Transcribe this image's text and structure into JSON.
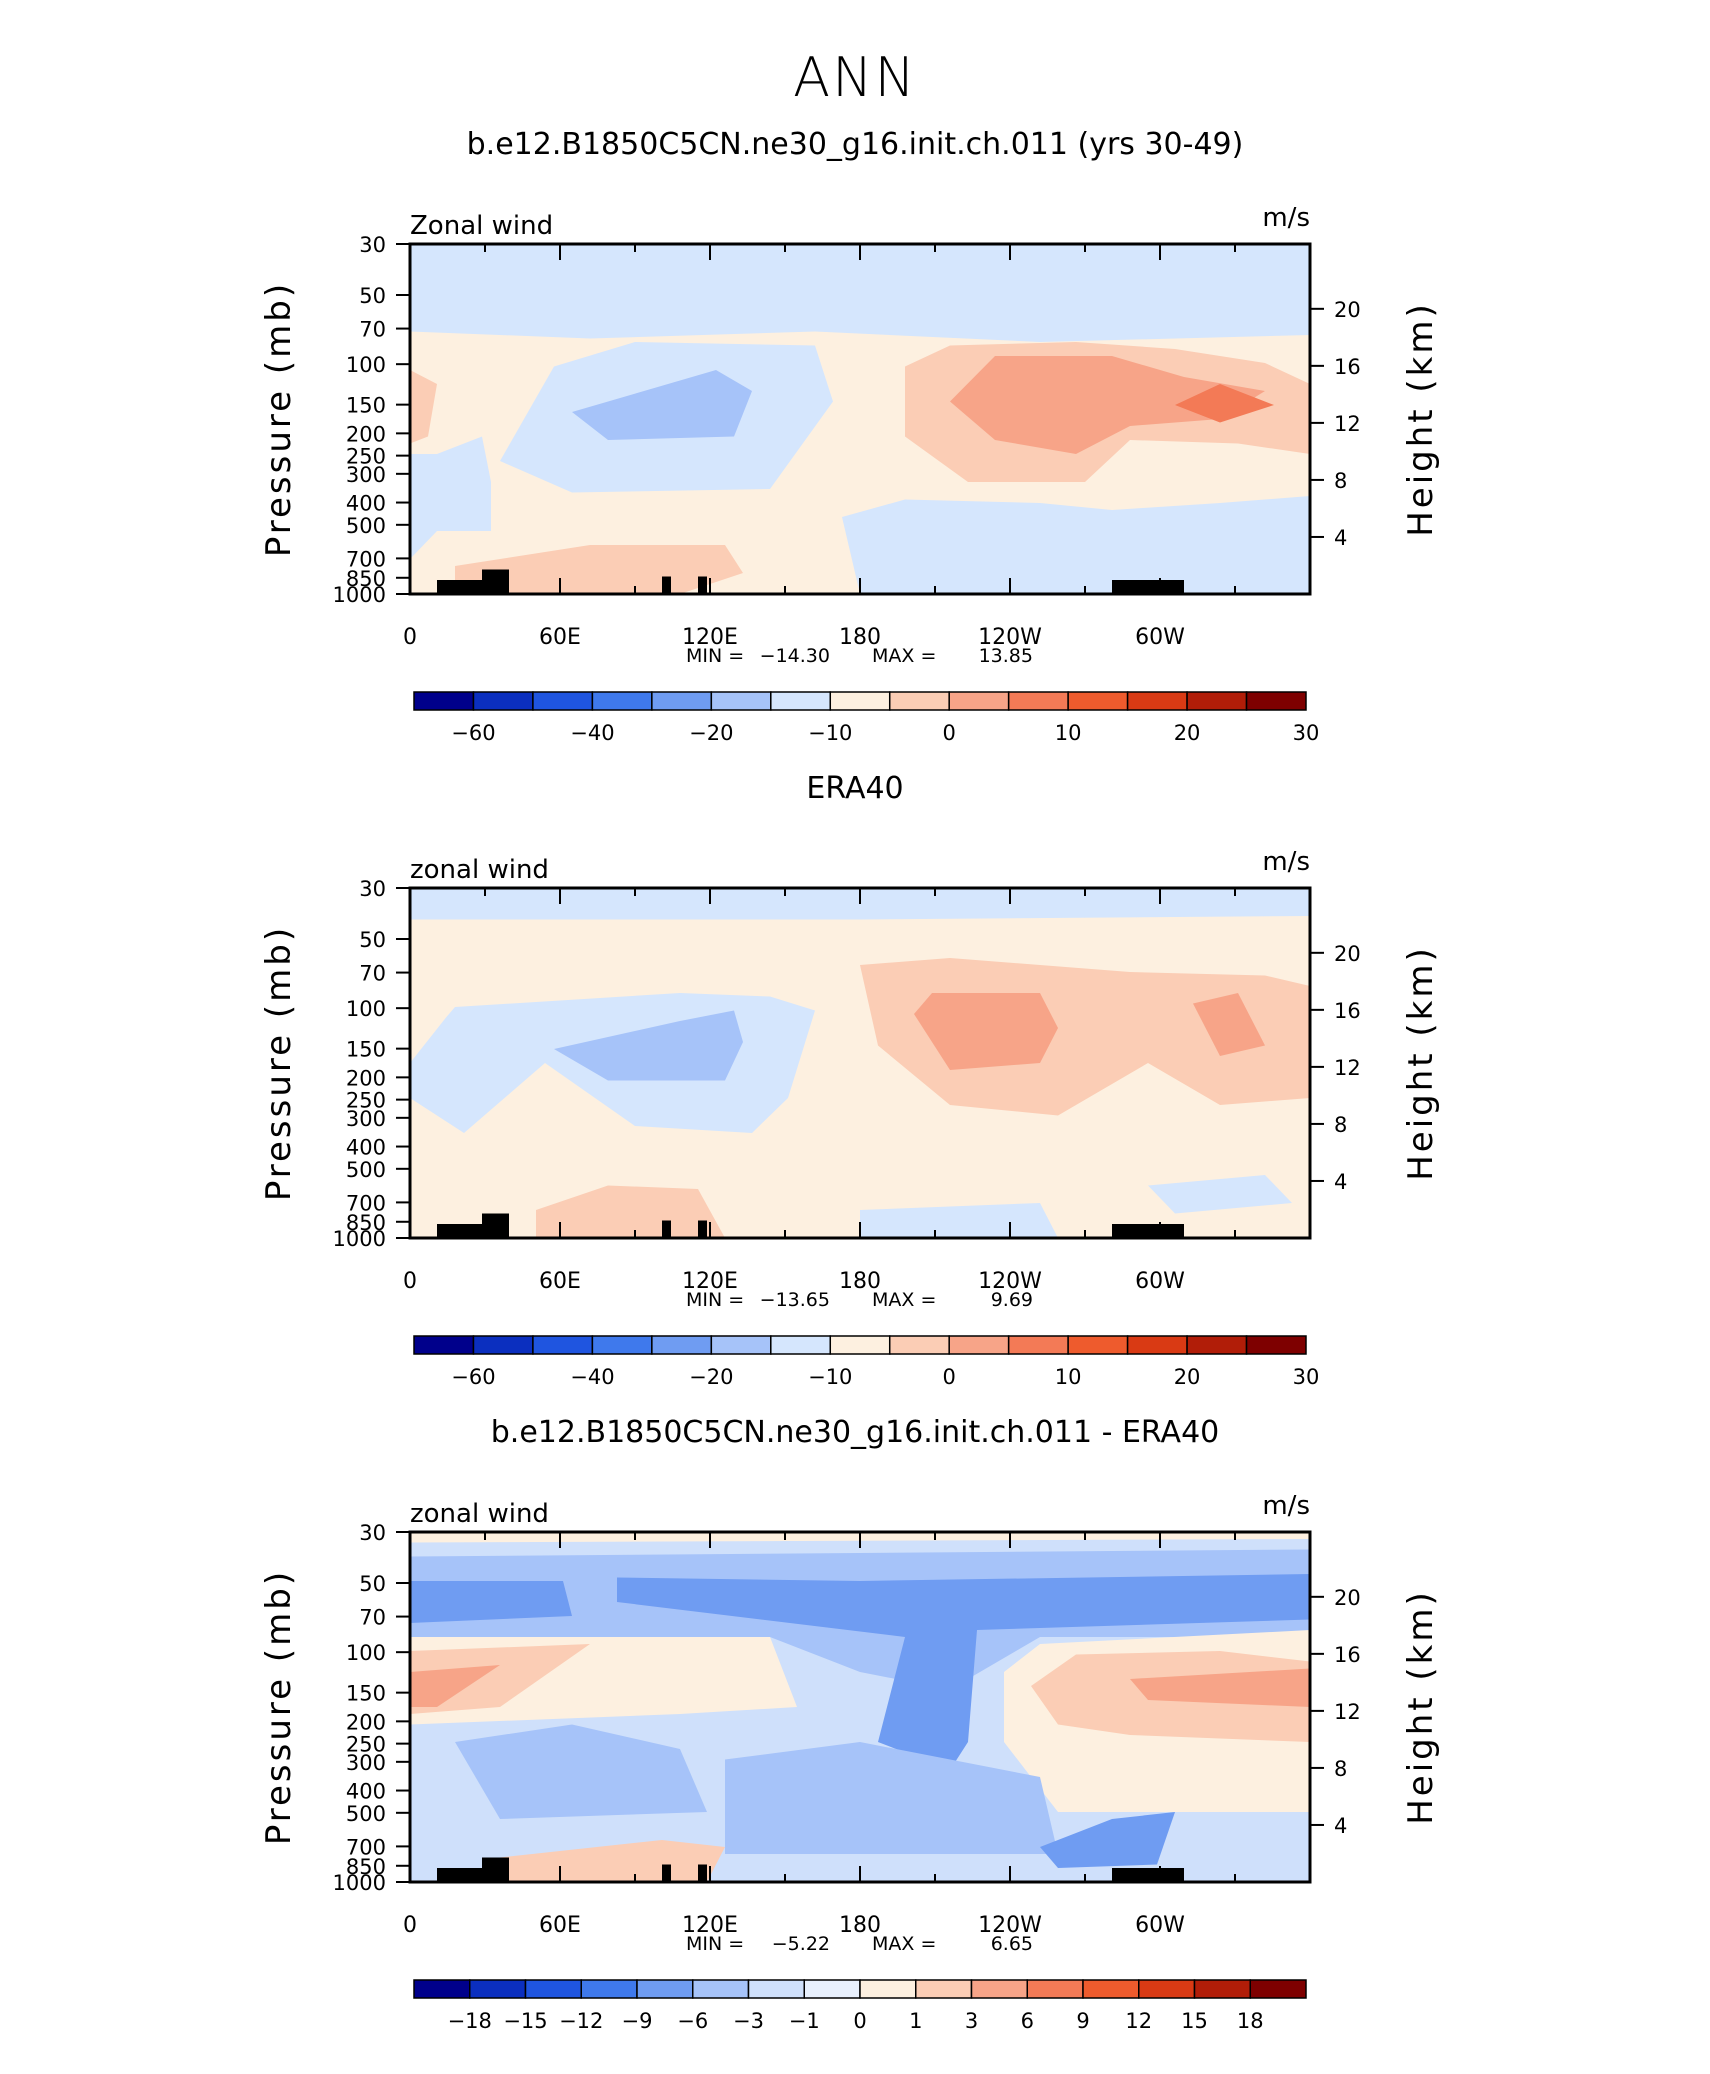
{
  "figure": {
    "title": "ANN"
  },
  "chart_data": [
    {
      "type": "heatmap",
      "title": "b.e12.B1850C5CN.ne30_g16.init.ch.011 (yrs 30-49)",
      "left_label": "Zonal wind",
      "right_label": "m/s",
      "ylabel": "Pressure (mb)",
      "ylabel_right": "Height (km)",
      "x_ticks": [
        "0",
        "60E",
        "120E",
        "180",
        "120W",
        "60W"
      ],
      "x_tick_values": [
        0,
        60,
        120,
        180,
        240,
        300
      ],
      "xlim": [
        0,
        360
      ],
      "y_ticks": [
        "30",
        "50",
        "70",
        "100",
        "150",
        "200",
        "250",
        "300",
        "400",
        "500",
        "700",
        "850",
        "1000"
      ],
      "y_scale": "log",
      "ylim": [
        1000,
        30
      ],
      "height_ticks": [
        "4",
        "8",
        "12",
        "16",
        "20"
      ],
      "stats": {
        "min_label": "MIN =",
        "min": "−14.30",
        "max_label": "MAX =",
        "max": "13.85"
      },
      "colorbar": {
        "labels": [
          "−60",
          "−40",
          "−20",
          "−10",
          "0",
          "10",
          "20",
          "30"
        ],
        "label_positions": [
          1,
          3,
          5,
          7,
          9,
          11,
          13,
          15
        ],
        "colors": [
          "#00008b",
          "#0b2fbf",
          "#1f55e0",
          "#3f79ec",
          "#6f9cf2",
          "#a6c3f9",
          "#d5e6fd",
          "#fdf0e0",
          "#fbcdb5",
          "#f7a488",
          "#f37a56",
          "#ee5b2d",
          "#d93a14",
          "#b11d08",
          "#7e0000"
        ]
      }
    },
    {
      "type": "heatmap",
      "title": "ERA40",
      "left_label": "zonal wind",
      "right_label": "m/s",
      "ylabel": "Pressure (mb)",
      "ylabel_right": "Height (km)",
      "x_ticks": [
        "0",
        "60E",
        "120E",
        "180",
        "120W",
        "60W"
      ],
      "x_tick_values": [
        0,
        60,
        120,
        180,
        240,
        300
      ],
      "xlim": [
        0,
        360
      ],
      "y_ticks": [
        "30",
        "50",
        "70",
        "100",
        "150",
        "200",
        "250",
        "300",
        "400",
        "500",
        "700",
        "850",
        "1000"
      ],
      "y_scale": "log",
      "ylim": [
        1000,
        30
      ],
      "height_ticks": [
        "4",
        "8",
        "12",
        "16",
        "20"
      ],
      "stats": {
        "min_label": "MIN =",
        "min": "−13.65",
        "max_label": "MAX =",
        "max": "9.69"
      },
      "colorbar": {
        "labels": [
          "−60",
          "−40",
          "−20",
          "−10",
          "0",
          "10",
          "20",
          "30"
        ],
        "label_positions": [
          1,
          3,
          5,
          7,
          9,
          11,
          13,
          15
        ],
        "colors": [
          "#00008b",
          "#0b2fbf",
          "#1f55e0",
          "#3f79ec",
          "#6f9cf2",
          "#a6c3f9",
          "#d5e6fd",
          "#fdf0e0",
          "#fbcdb5",
          "#f7a488",
          "#f37a56",
          "#ee5b2d",
          "#d93a14",
          "#b11d08",
          "#7e0000"
        ]
      }
    },
    {
      "type": "heatmap",
      "title": "b.e12.B1850C5CN.ne30_g16.init.ch.011 - ERA40",
      "left_label": "zonal wind",
      "right_label": "m/s",
      "ylabel": "Pressure (mb)",
      "ylabel_right": "Height (km)",
      "x_ticks": [
        "0",
        "60E",
        "120E",
        "180",
        "120W",
        "60W"
      ],
      "x_tick_values": [
        0,
        60,
        120,
        180,
        240,
        300
      ],
      "xlim": [
        0,
        360
      ],
      "y_ticks": [
        "30",
        "50",
        "70",
        "100",
        "150",
        "200",
        "250",
        "300",
        "400",
        "500",
        "700",
        "850",
        "1000"
      ],
      "y_scale": "log",
      "ylim": [
        1000,
        30
      ],
      "height_ticks": [
        "4",
        "8",
        "12",
        "16",
        "20"
      ],
      "stats": {
        "min_label": "MIN =",
        "min": "−5.22",
        "max_label": "MAX =",
        "max": "6.65"
      },
      "colorbar": {
        "labels": [
          "−18",
          "−15",
          "−12",
          "−9",
          "−6",
          "−3",
          "−1",
          "0",
          "1",
          "3",
          "6",
          "9",
          "12",
          "15",
          "18"
        ],
        "label_positions": [
          1,
          2,
          3,
          4,
          5,
          6,
          7,
          8,
          9,
          10,
          11,
          12,
          13,
          14,
          15
        ],
        "colors": [
          "#00008b",
          "#0b2fbf",
          "#1f55e0",
          "#3f79ec",
          "#6f9cf2",
          "#a6c3f9",
          "#cfe0fb",
          "#e8f0fd",
          "#fdf0e0",
          "#fbcdb5",
          "#f7a488",
          "#f37a56",
          "#ee5b2d",
          "#d93a14",
          "#b11d08",
          "#7e0000"
        ]
      }
    }
  ]
}
